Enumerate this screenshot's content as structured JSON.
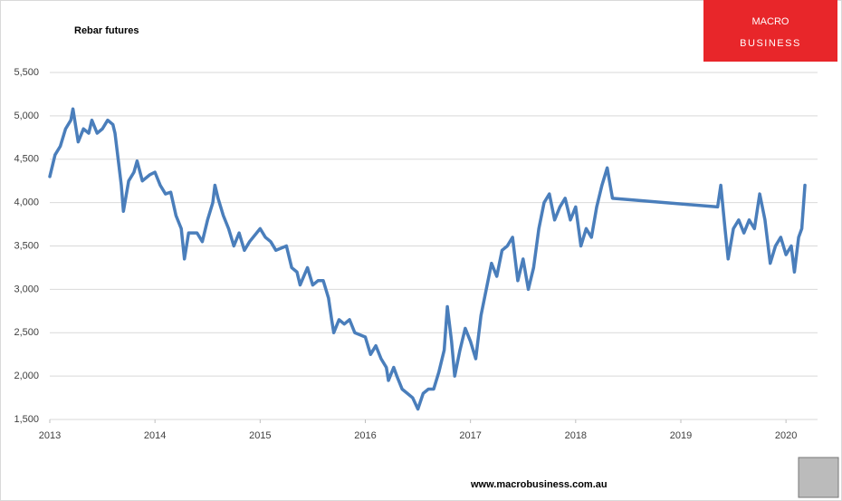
{
  "chart_data": {
    "type": "line",
    "title": "Rebar futures",
    "logo": {
      "line1": "MACRO",
      "line2": "BUSINESS"
    },
    "footer": "www.macrobusiness.com.au",
    "color": "#4a7ebb",
    "grid": true,
    "xlim": [
      2013,
      2020.3
    ],
    "xticks": [
      2013,
      2014,
      2015,
      2016,
      2017,
      2018,
      2019,
      2020
    ],
    "ylim": [
      1500,
      5500
    ],
    "yticks": [
      {
        "value": 1500,
        "label": "1,500"
      },
      {
        "value": 2000,
        "label": "2,000"
      },
      {
        "value": 2500,
        "label": "2,500"
      },
      {
        "value": 3000,
        "label": "3,000"
      },
      {
        "value": 3500,
        "label": "3,500"
      },
      {
        "value": 4000,
        "label": "4,000"
      },
      {
        "value": 4500,
        "label": "4,500"
      },
      {
        "value": 5000,
        "label": "5,000"
      },
      {
        "value": 5500,
        "label": "5,500"
      }
    ],
    "x": [
      2013.0,
      2013.05,
      2013.1,
      2013.15,
      2013.2,
      2013.22,
      2013.27,
      2013.32,
      2013.37,
      2013.4,
      2013.45,
      2013.5,
      2013.55,
      2013.6,
      2013.62,
      2013.65,
      2013.68,
      2013.7,
      2013.75,
      2013.8,
      2013.83,
      2013.88,
      2013.95,
      2014.0,
      2014.05,
      2014.1,
      2014.15,
      2014.2,
      2014.25,
      2014.28,
      2014.32,
      2014.4,
      2014.45,
      2014.5,
      2014.55,
      2014.57,
      2014.6,
      2014.65,
      2014.7,
      2014.75,
      2014.8,
      2014.85,
      2014.9,
      2015.0,
      2015.05,
      2015.1,
      2015.15,
      2015.25,
      2015.3,
      2015.35,
      2015.38,
      2015.45,
      2015.5,
      2015.55,
      2015.6,
      2015.65,
      2015.68,
      2015.7,
      2015.75,
      2015.8,
      2015.85,
      2015.9,
      2016.0,
      2016.05,
      2016.1,
      2016.15,
      2016.2,
      2016.22,
      2016.27,
      2016.3,
      2016.35,
      2016.4,
      2016.45,
      2016.5,
      2016.55,
      2016.6,
      2016.65,
      2016.7,
      2016.75,
      2016.78,
      2016.82,
      2016.85,
      2016.9,
      2016.95,
      2017.0,
      2017.05,
      2017.1,
      2017.15,
      2017.2,
      2017.25,
      2017.3,
      2017.35,
      2017.4,
      2017.45,
      2017.5,
      2017.55,
      2017.6,
      2017.65,
      2017.7,
      2017.75,
      2017.8,
      2017.85,
      2017.9,
      2017.95,
      2018.0,
      2018.05,
      2018.1,
      2018.15,
      2018.2,
      2018.25,
      2018.3,
      2018.35,
      2019.35,
      2019.38,
      2019.42,
      2019.45,
      2019.5,
      2019.55,
      2019.6,
      2019.65,
      2019.7,
      2019.75,
      2019.8,
      2019.85,
      2019.9,
      2019.95,
      2020.0,
      2020.05,
      2020.08,
      2020.12,
      2020.15,
      2020.18
    ],
    "values": [
      4300,
      4550,
      4650,
      4850,
      4950,
      5080,
      4700,
      4850,
      4800,
      4950,
      4800,
      4850,
      4950,
      4900,
      4800,
      4500,
      4200,
      3900,
      4250,
      4350,
      4480,
      4250,
      4320,
      4350,
      4200,
      4100,
      4120,
      3850,
      3700,
      3350,
      3650,
      3650,
      3550,
      3800,
      4000,
      4200,
      4050,
      3850,
      3700,
      3500,
      3650,
      3450,
      3550,
      3700,
      3600,
      3550,
      3450,
      3500,
      3250,
      3200,
      3050,
      3250,
      3050,
      3100,
      3100,
      2900,
      2650,
      2500,
      2650,
      2600,
      2650,
      2500,
      2450,
      2250,
      2350,
      2200,
      2100,
      1950,
      2100,
      2000,
      1850,
      1800,
      1750,
      1620,
      1800,
      1850,
      1850,
      2050,
      2300,
      2800,
      2400,
      2000,
      2300,
      2550,
      2400,
      2200,
      2700,
      3000,
      3300,
      3150,
      3450,
      3500,
      3600,
      3100,
      3350,
      3000,
      3250,
      3700,
      4000,
      4100,
      3800,
      3950,
      4050,
      3800,
      3950,
      3500,
      3700,
      3600,
      3950,
      4200,
      4400,
      4050,
      3950,
      4200,
      3700,
      3350,
      3700,
      3800,
      3650,
      3800,
      3700,
      4100,
      3800,
      3300,
      3500,
      3600,
      3400,
      3500,
      3200,
      3600,
      3700,
      4200
    ]
  }
}
